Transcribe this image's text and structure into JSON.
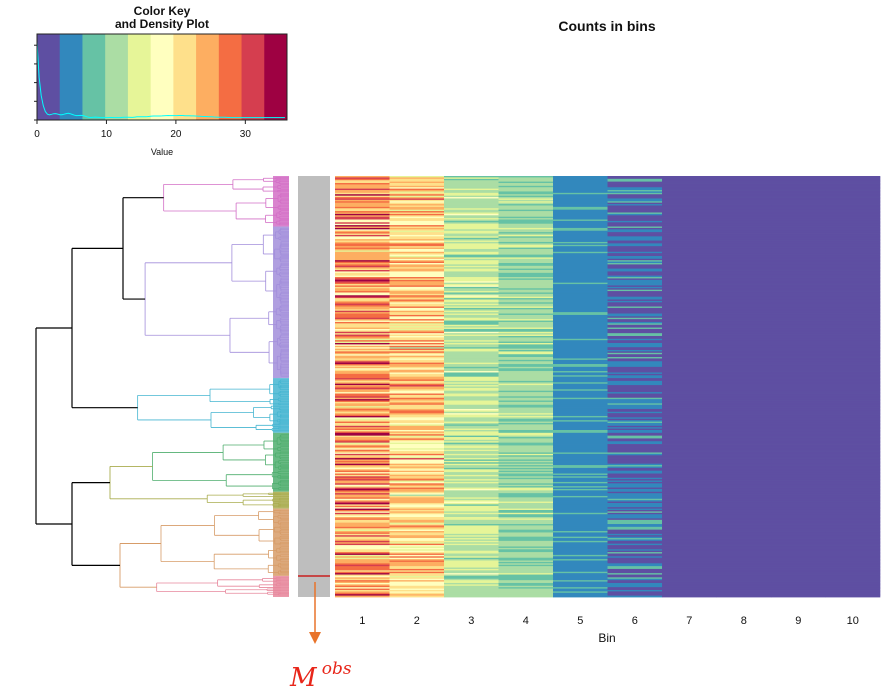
{
  "chart_data": {
    "type": "heatmap",
    "title": "Counts in bins",
    "xlabel": "Bin",
    "ylabel": "",
    "x_categories": [
      "1",
      "2",
      "3",
      "4",
      "5",
      "6",
      "7",
      "8",
      "9",
      "10"
    ],
    "row_count_approx": 300,
    "palette": [
      "#5E4FA2",
      "#3288BD",
      "#66C2A5",
      "#ABDDA4",
      "#E6F598",
      "#FFFFBF",
      "#FEE08B",
      "#FDAE61",
      "#F46D43",
      "#D53E4F",
      "#9E0142"
    ],
    "palette_name": "Spectral (reversed)",
    "approx_column_mean_values": [
      26,
      22,
      12,
      10,
      4,
      2,
      0,
      0,
      0,
      0
    ],
    "color_key": {
      "title_line1": "Color Key",
      "title_line2": "and Density Plot",
      "xlabel": "Value",
      "ticks": [
        "0",
        "10",
        "20",
        "30"
      ],
      "range": [
        0,
        36
      ],
      "density_color": "#00FFFF"
    },
    "dendrogram": {
      "cluster_colors": [
        "#D36FC6",
        "#A28EDB",
        "#45B5D1",
        "#4FAE6E",
        "#A9AC4E",
        "#D79C68",
        "#E7879C"
      ],
      "cluster_fractions": [
        0.12,
        0.36,
        0.13,
        0.14,
        0.04,
        0.16,
        0.05
      ],
      "trunk_color": "#000000"
    },
    "side_bar": {
      "color": "#BEBEBE",
      "highlight_color": "#CC0000"
    },
    "annotation": {
      "label_base": "M",
      "label_sup": "obs",
      "color": "#E8261A",
      "arrow_color": "#E8732A"
    }
  }
}
